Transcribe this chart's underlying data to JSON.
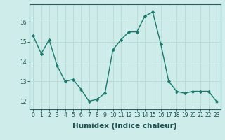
{
  "x": [
    0,
    1,
    2,
    3,
    4,
    5,
    6,
    7,
    8,
    9,
    10,
    11,
    12,
    13,
    14,
    15,
    16,
    17,
    18,
    19,
    20,
    21,
    22,
    23
  ],
  "y": [
    15.3,
    14.4,
    15.1,
    13.8,
    13.0,
    13.1,
    12.6,
    12.0,
    12.1,
    12.4,
    14.6,
    15.1,
    15.5,
    15.5,
    16.3,
    16.5,
    14.9,
    13.0,
    12.5,
    12.4,
    12.5,
    12.5,
    12.5,
    12.0
  ],
  "line_color": "#1a7a6e",
  "marker": "D",
  "markersize": 2.2,
  "linewidth": 1.0,
  "bg_color": "#ceecea",
  "grid_color": "#b8dbd8",
  "xlabel": "Humidex (Indice chaleur)",
  "ylim": [
    11.6,
    16.9
  ],
  "xlim": [
    -0.5,
    23.5
  ],
  "yticks": [
    12,
    13,
    14,
    15,
    16
  ],
  "xtick_labels": [
    "0",
    "1",
    "2",
    "3",
    "4",
    "5",
    "6",
    "7",
    "8",
    "9",
    "1011",
    "1213",
    "1415",
    "1617",
    "1819",
    "2021",
    "2223"
  ],
  "tick_fontsize": 5.5,
  "xlabel_fontsize": 7.5,
  "axis_color": "#2a6060",
  "text_color": "#1a5050"
}
